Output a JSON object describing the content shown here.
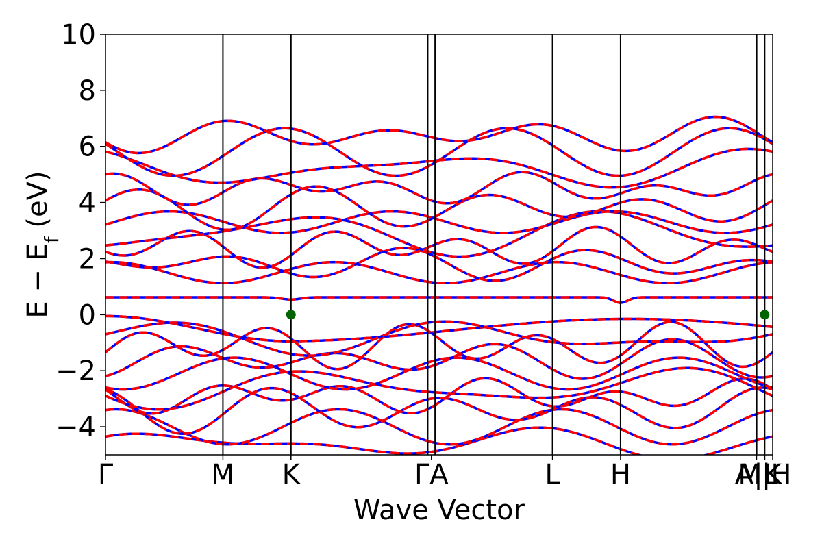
{
  "chart_data": {
    "type": "line",
    "title": "",
    "xlabel": "Wave Vector",
    "ylabel": "E − E_f (eV)",
    "ylabel_parts": {
      "pre": "E − E",
      "sub": "f",
      "post": " (eV)"
    },
    "ylim": [
      -5,
      10
    ],
    "xlim": [
      0,
      1
    ],
    "yticks": [
      -4,
      -2,
      0,
      2,
      4,
      6,
      8,
      10
    ],
    "ytick_labels": [
      "−4",
      "−2",
      "0",
      "2",
      "4",
      "6",
      "8",
      "10"
    ],
    "kpath": [
      {
        "label": "Γ",
        "x": 0.0
      },
      {
        "label": "M",
        "x": 0.176
      },
      {
        "label": "K",
        "x": 0.278
      },
      {
        "label": "Γ",
        "x": 0.483
      },
      {
        "label": "A",
        "x": 0.494
      },
      {
        "label": "L",
        "x": 0.67
      },
      {
        "label": "H",
        "x": 0.772
      },
      {
        "label": "A",
        "x": 0.976
      },
      {
        "label": "L",
        "x": 0.988
      },
      {
        "label": "M",
        "x": 0.976
      },
      {
        "label": "H",
        "x": 0.988
      },
      {
        "label": "K",
        "x": 1.0
      }
    ],
    "kpath_tick_text": [
      "Γ",
      "M",
      "K",
      "ΓA",
      "L",
      "H",
      "A|L",
      "M|H",
      "K"
    ],
    "grid": false,
    "series": [
      {
        "name": "",
        "color": "#0000ff",
        "style": "solid"
      },
      {
        "name": "",
        "color": "#ff0000",
        "style": "dashed"
      }
    ],
    "markers": [
      {
        "x": 0.278,
        "y": 0.0,
        "color": "#006400"
      },
      {
        "x": 0.988,
        "y": 0.0,
        "color": "#006400"
      }
    ],
    "band_gap_annotation": {
      "vbm": 0.0,
      "cbm": 0.6
    }
  }
}
